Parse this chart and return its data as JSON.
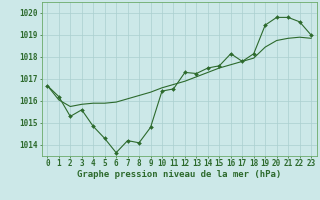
{
  "hours": [
    0,
    1,
    2,
    3,
    4,
    5,
    6,
    7,
    8,
    9,
    10,
    11,
    12,
    13,
    14,
    15,
    16,
    17,
    18,
    19,
    20,
    21,
    22,
    23
  ],
  "line_jagged": [
    1016.7,
    1016.2,
    1015.3,
    1015.6,
    1014.85,
    1014.3,
    1013.65,
    1014.2,
    1014.1,
    1014.8,
    1016.45,
    1016.55,
    1017.3,
    1017.25,
    1017.5,
    1017.6,
    1018.15,
    1017.8,
    1018.15,
    1019.45,
    1019.8,
    1019.8,
    1019.6,
    1019.0
  ],
  "line_smooth": [
    1016.7,
    1016.05,
    1015.75,
    1015.85,
    1015.9,
    1015.9,
    1015.95,
    1016.1,
    1016.25,
    1016.4,
    1016.6,
    1016.75,
    1016.9,
    1017.1,
    1017.3,
    1017.5,
    1017.65,
    1017.8,
    1017.95,
    1018.45,
    1018.75,
    1018.85,
    1018.9,
    1018.85
  ],
  "line_color": "#2d6a2d",
  "bg_color": "#cce8e8",
  "grid_color": "#aacfcf",
  "xlabel": "Graphe pression niveau de la mer (hPa)",
  "ylim": [
    1013.5,
    1020.5
  ],
  "xlim": [
    -0.5,
    23.5
  ],
  "yticks": [
    1014,
    1015,
    1016,
    1017,
    1018,
    1019,
    1020
  ],
  "xticks": [
    0,
    1,
    2,
    3,
    4,
    5,
    6,
    7,
    8,
    9,
    10,
    11,
    12,
    13,
    14,
    15,
    16,
    17,
    18,
    19,
    20,
    21,
    22,
    23
  ],
  "tick_fontsize": 5.5,
  "xlabel_fontsize": 6.5
}
